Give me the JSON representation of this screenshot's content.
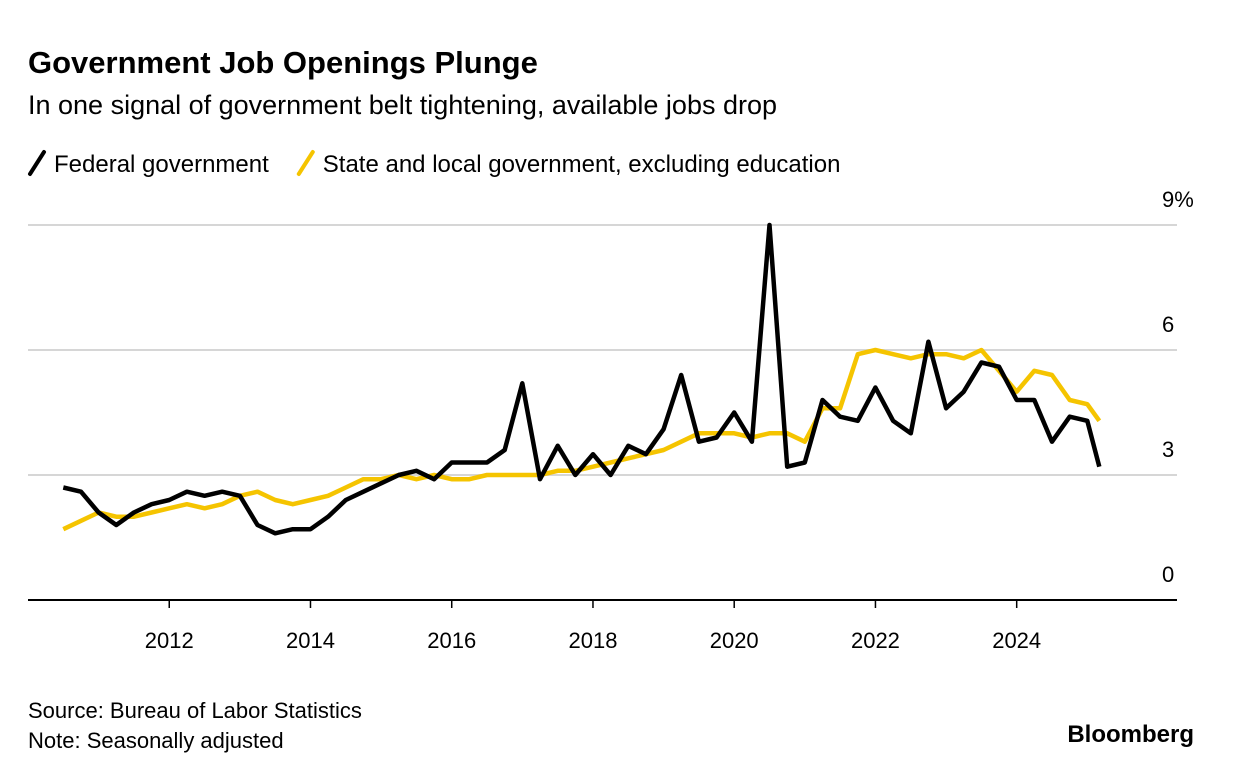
{
  "chart_data": {
    "type": "line",
    "title": "Government Job Openings Plunge",
    "subtitle": "In one signal of government belt tightening, available jobs drop",
    "source": "Source: Bureau of Labor Statistics",
    "note": "Note: Seasonally adjusted",
    "brand": "Bloomberg",
    "x": [
      2010.5,
      2010.75,
      2011,
      2011.25,
      2011.5,
      2011.75,
      2012,
      2012.25,
      2012.5,
      2012.75,
      2013,
      2013.25,
      2013.5,
      2013.75,
      2014,
      2014.25,
      2014.5,
      2014.75,
      2015,
      2015.25,
      2015.5,
      2015.75,
      2016,
      2016.25,
      2016.5,
      2016.75,
      2017,
      2017.25,
      2017.5,
      2017.75,
      2018,
      2018.25,
      2018.5,
      2018.75,
      2019,
      2019.25,
      2019.5,
      2019.75,
      2020,
      2020.25,
      2020.5,
      2020.75,
      2021,
      2021.25,
      2021.5,
      2021.75,
      2022,
      2022.25,
      2022.5,
      2022.75,
      2023,
      2023.25,
      2023.5,
      2023.75,
      2024,
      2024.25,
      2024.5,
      2024.75,
      2025,
      2025.17
    ],
    "series": [
      {
        "name": "Federal government",
        "color": "#000000",
        "values": [
          2.7,
          2.6,
          2.1,
          1.8,
          2.1,
          2.3,
          2.4,
          2.6,
          2.5,
          2.6,
          2.5,
          1.8,
          1.6,
          1.7,
          1.7,
          2.0,
          2.4,
          2.6,
          2.8,
          3.0,
          3.1,
          2.9,
          3.3,
          3.3,
          3.3,
          3.6,
          5.2,
          2.9,
          3.7,
          3.0,
          3.5,
          3.0,
          3.7,
          3.5,
          4.1,
          5.4,
          3.8,
          3.9,
          4.5,
          3.8,
          9.0,
          3.2,
          3.3,
          4.8,
          4.4,
          4.3,
          5.1,
          4.3,
          4.0,
          6.2,
          4.6,
          5.0,
          5.7,
          5.6,
          4.8,
          4.8,
          3.8,
          4.4,
          4.3,
          3.2
        ]
      },
      {
        "name": "State and local government, excluding education",
        "color": "#f5c400",
        "values": [
          1.7,
          1.9,
          2.1,
          2.0,
          2.0,
          2.1,
          2.2,
          2.3,
          2.2,
          2.3,
          2.5,
          2.6,
          2.4,
          2.3,
          2.4,
          2.5,
          2.7,
          2.9,
          2.9,
          3.0,
          2.9,
          3.0,
          2.9,
          2.9,
          3.0,
          3.0,
          3.0,
          3.0,
          3.1,
          3.1,
          3.2,
          3.3,
          3.4,
          3.5,
          3.6,
          3.8,
          4.0,
          4.0,
          4.0,
          3.9,
          4.0,
          4.0,
          3.8,
          4.6,
          4.6,
          5.9,
          6.0,
          5.9,
          5.8,
          5.9,
          5.9,
          5.8,
          6.0,
          5.5,
          5.0,
          5.5,
          5.4,
          4.8,
          4.7,
          4.3
        ]
      }
    ],
    "xlim": [
      2010,
      2026.27
    ],
    "xticks": [
      2012,
      2014,
      2016,
      2018,
      2020,
      2022,
      2024
    ],
    "ylim": [
      0,
      9
    ],
    "yticks": [
      0,
      3,
      6,
      {
        "value": 9,
        "label": "9%"
      }
    ],
    "grid": true
  }
}
